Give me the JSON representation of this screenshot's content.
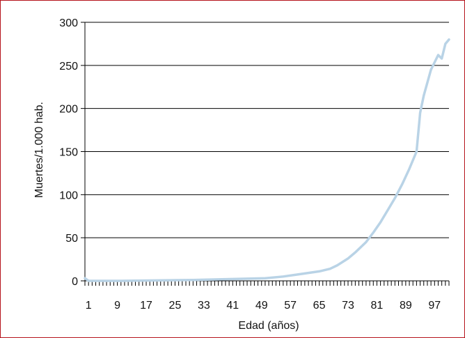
{
  "chart_data": {
    "type": "line",
    "title": "",
    "xlabel": "Edad (años)",
    "ylabel": "Muertes/1.000 hab.",
    "xlim": [
      0,
      101
    ],
    "ylim": [
      0,
      300
    ],
    "x_tick_labels": [
      "1",
      "9",
      "17",
      "25",
      "33",
      "41",
      "49",
      "57",
      "65",
      "73",
      "81",
      "89",
      "97"
    ],
    "y_tick_labels": [
      "0",
      "50",
      "100",
      "150",
      "200",
      "250",
      "300"
    ],
    "grid": "horizontal",
    "colors": {
      "line": "#b9d3e6",
      "grid": "#000000",
      "frame": "#b5121b"
    },
    "series": [
      {
        "x": [
          0,
          1,
          2,
          5,
          10,
          20,
          30,
          40,
          45,
          50,
          55,
          60,
          65,
          68,
          70,
          73,
          75,
          78,
          80,
          82,
          84,
          86,
          88,
          90,
          92,
          93,
          94,
          96,
          98,
          99,
          100,
          101
        ],
        "y": [
          3,
          0,
          0,
          0,
          0,
          0.5,
          1,
          2,
          2.5,
          3,
          5,
          8,
          11,
          14,
          18,
          26,
          33,
          45,
          56,
          68,
          82,
          96,
          112,
          130,
          150,
          195,
          215,
          245,
          262,
          258,
          275,
          280
        ]
      }
    ]
  }
}
